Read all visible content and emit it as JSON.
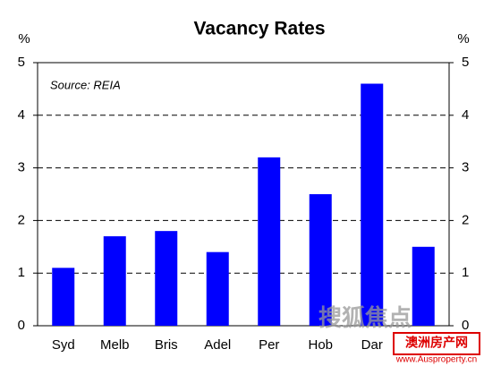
{
  "chart_data": {
    "type": "bar",
    "title": "Vacancy Rates",
    "annotation": "Source: REIA",
    "y_unit": "%",
    "y2_unit": "%",
    "categories": [
      "Syd",
      "Melb",
      "Bris",
      "Adel",
      "Per",
      "Hob",
      "Dar",
      null
    ],
    "values": [
      1.1,
      1.7,
      1.8,
      1.4,
      3.2,
      2.5,
      4.6,
      1.5
    ],
    "color": "#0000ff",
    "ylim": [
      0,
      5
    ],
    "yticks": [
      0,
      1,
      2,
      3,
      4,
      5
    ],
    "y2lim": [
      0,
      5
    ],
    "y2ticks": [
      0,
      1,
      2,
      3,
      4,
      5
    ],
    "grid": true
  },
  "watermark": {
    "logo": "搜狐焦点",
    "site_name": "澳洲房产网",
    "url": "www.Ausproperty.cn"
  }
}
